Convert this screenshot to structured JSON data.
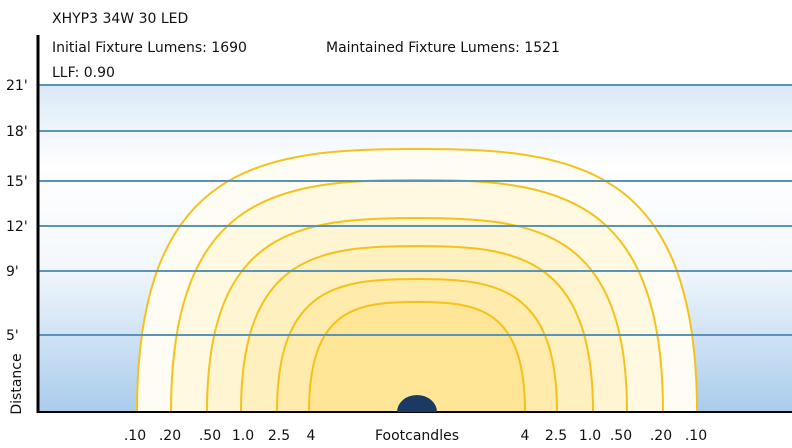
{
  "header": {
    "title": "XHYP3 34W 30 LED",
    "initial_lumens": "Initial Fixture Lumens: 1690",
    "maintained_lumens": "Maintained Fixture Lumens: 1521",
    "llf": "LLF: 0.90"
  },
  "distance_labels": [
    "21'",
    "18'",
    "15'",
    "12'",
    "9'",
    "5'"
  ],
  "footcandle_labels_left": [
    ".10",
    ".20",
    ".50",
    "1.0",
    "2.5",
    "4"
  ],
  "footcandle_labels_right": [
    "4",
    "2.5",
    "1.0",
    ".50",
    ".20",
    ".10"
  ],
  "x_axis_label": "Footcandles",
  "y_axis_label": "Distance"
}
